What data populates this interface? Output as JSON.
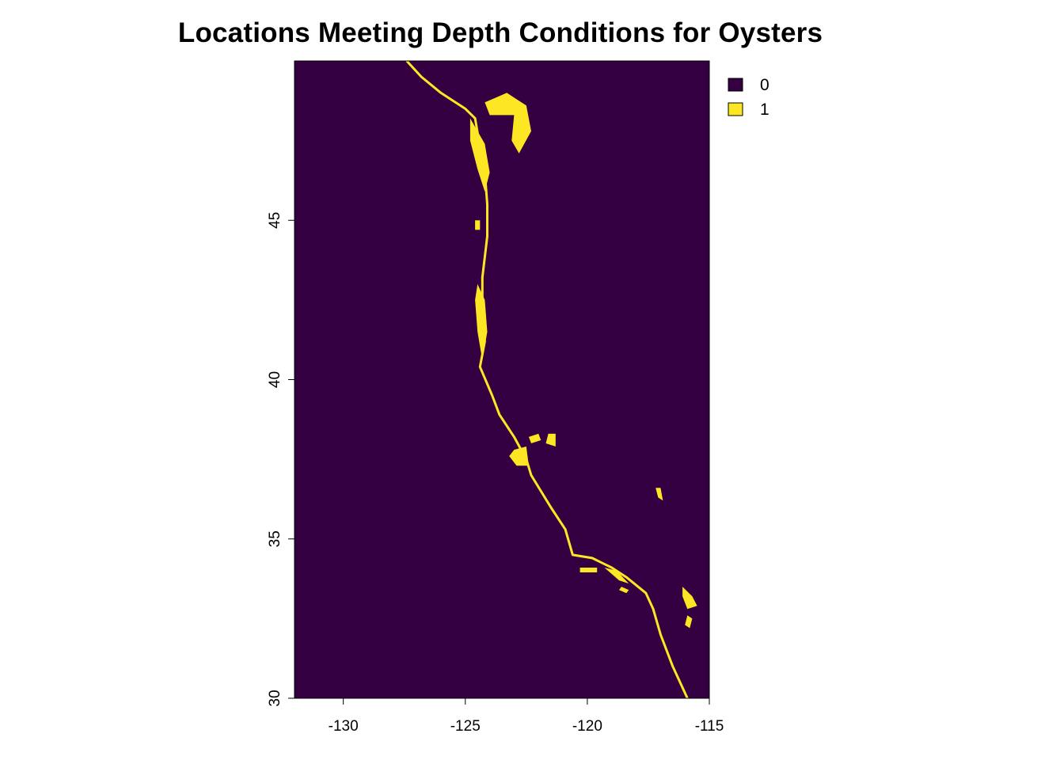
{
  "title": "Locations Meeting Depth Conditions for Oysters",
  "colors": {
    "class_0": "#340042",
    "class_1": "#FDE725",
    "axis": "#000000"
  },
  "chart_data": {
    "type": "raster-map",
    "title": "Locations Meeting Depth Conditions for Oysters",
    "xlim": [
      -132,
      -115
    ],
    "ylim": [
      30,
      50
    ],
    "x_ticks": [
      -130,
      -125,
      -120,
      -115
    ],
    "y_ticks": [
      30,
      35,
      40,
      45
    ],
    "x_tick_labels": [
      "-130",
      "-125",
      "-120",
      "-115"
    ],
    "y_tick_labels": [
      "30",
      "35",
      "40",
      "45"
    ],
    "legend": {
      "placement": "top-right outside plot",
      "entries": [
        {
          "label": "0",
          "color": "#340042"
        },
        {
          "label": "1",
          "color": "#FDE725"
        }
      ]
    },
    "coast_band": [
      [
        -127.4,
        50.0
      ],
      [
        -126.8,
        49.5
      ],
      [
        -126.0,
        49.0
      ],
      [
        -125.0,
        48.5
      ],
      [
        -124.6,
        48.2
      ],
      [
        -124.4,
        47.3
      ],
      [
        -124.2,
        46.5
      ],
      [
        -124.1,
        45.5
      ],
      [
        -124.1,
        44.5
      ],
      [
        -124.3,
        43.2
      ],
      [
        -124.3,
        42.0
      ],
      [
        -124.2,
        41.2
      ],
      [
        -124.4,
        40.4
      ],
      [
        -123.9,
        39.5
      ],
      [
        -123.6,
        38.9
      ],
      [
        -123.0,
        38.2
      ],
      [
        -122.5,
        37.5
      ],
      [
        -122.3,
        37.0
      ],
      [
        -121.9,
        36.5
      ],
      [
        -121.5,
        36.0
      ],
      [
        -120.9,
        35.3
      ],
      [
        -120.6,
        34.5
      ],
      [
        -119.8,
        34.4
      ],
      [
        -119.0,
        34.1
      ],
      [
        -118.4,
        33.8
      ],
      [
        -117.6,
        33.3
      ],
      [
        -117.3,
        32.8
      ],
      [
        -117.0,
        32.0
      ],
      [
        -116.5,
        31.0
      ],
      [
        -115.9,
        30.0
      ]
    ],
    "patches": [
      {
        "name": "puget-sound",
        "points": [
          [
            -124.2,
            48.7
          ],
          [
            -123.3,
            49.0
          ],
          [
            -122.5,
            48.6
          ],
          [
            -122.3,
            47.8
          ],
          [
            -122.8,
            47.1
          ],
          [
            -123.1,
            47.5
          ],
          [
            -123.0,
            48.3
          ],
          [
            -124.0,
            48.3
          ]
        ]
      },
      {
        "name": "willapa-bay",
        "points": [
          [
            -124.8,
            48.2
          ],
          [
            -124.2,
            47.4
          ],
          [
            -124.0,
            46.5
          ],
          [
            -124.2,
            45.9
          ],
          [
            -124.5,
            46.6
          ],
          [
            -124.8,
            47.5
          ]
        ]
      },
      {
        "name": "cape-blanco-shelf",
        "points": [
          [
            -124.5,
            43.0
          ],
          [
            -124.2,
            42.5
          ],
          [
            -124.1,
            41.5
          ],
          [
            -124.3,
            40.6
          ],
          [
            -124.5,
            41.5
          ],
          [
            -124.6,
            42.5
          ]
        ]
      },
      {
        "name": "gulf-farallones",
        "points": [
          [
            -123.0,
            37.8
          ],
          [
            -122.5,
            37.9
          ],
          [
            -122.4,
            37.3
          ],
          [
            -122.9,
            37.3
          ],
          [
            -123.2,
            37.6
          ]
        ]
      },
      {
        "name": "san-pablo-bay",
        "points": [
          [
            -122.4,
            38.2
          ],
          [
            -122.0,
            38.3
          ],
          [
            -121.9,
            38.1
          ],
          [
            -122.3,
            38.0
          ]
        ]
      },
      {
        "name": "delta-patch",
        "points": [
          [
            -121.6,
            38.3
          ],
          [
            -121.3,
            38.3
          ],
          [
            -121.3,
            37.9
          ],
          [
            -121.7,
            38.0
          ]
        ]
      },
      {
        "name": "salton-sea",
        "points": [
          [
            -116.1,
            33.5
          ],
          [
            -115.7,
            33.2
          ],
          [
            -115.5,
            32.9
          ],
          [
            -115.9,
            32.8
          ],
          [
            -116.1,
            33.2
          ]
        ]
      },
      {
        "name": "salton-south",
        "points": [
          [
            -115.9,
            32.6
          ],
          [
            -115.7,
            32.5
          ],
          [
            -115.8,
            32.2
          ],
          [
            -116.0,
            32.3
          ]
        ]
      },
      {
        "name": "lake-fragment",
        "points": [
          [
            -117.2,
            36.6
          ],
          [
            -117.0,
            36.6
          ],
          [
            -116.9,
            36.2
          ],
          [
            -117.1,
            36.3
          ]
        ]
      },
      {
        "name": "channel-islands",
        "points": [
          [
            -120.3,
            34.1
          ],
          [
            -119.6,
            34.1
          ],
          [
            -119.6,
            33.95
          ],
          [
            -120.3,
            33.95
          ]
        ]
      },
      {
        "name": "catalina",
        "points": [
          [
            -118.6,
            33.5
          ],
          [
            -118.3,
            33.4
          ],
          [
            -118.4,
            33.3
          ],
          [
            -118.7,
            33.4
          ]
        ]
      },
      {
        "name": "socal-bight",
        "points": [
          [
            -119.3,
            34.1
          ],
          [
            -118.8,
            34.0
          ],
          [
            -118.3,
            33.6
          ],
          [
            -118.7,
            33.7
          ]
        ]
      },
      {
        "name": "oregon-spot",
        "points": [
          [
            -124.6,
            45.0
          ],
          [
            -124.4,
            45.0
          ],
          [
            -124.4,
            44.7
          ],
          [
            -124.6,
            44.7
          ]
        ]
      }
    ]
  }
}
